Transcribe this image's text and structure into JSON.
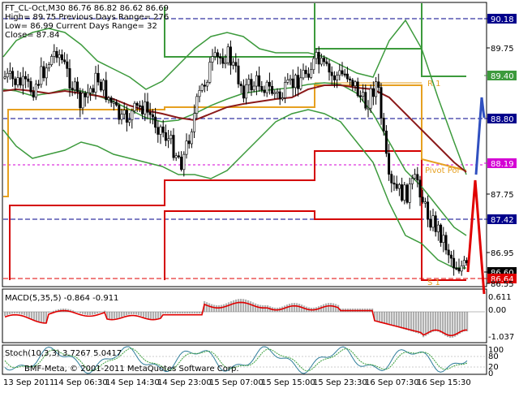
{
  "header": {
    "line1": "FT_CL-Oct,M30  86.76 86.82 86.62 86.69",
    "line2": "High= 89.75   Previous Days Range= 276",
    "line3": "Low= 86.99   Current Days Range= 32",
    "line4": "Close= 87.84"
  },
  "main_chart": {
    "price_labels": [
      {
        "text": "90.18",
        "color": "#00008b"
      },
      {
        "text": "89.75",
        "color": "none"
      },
      {
        "text": "89.40",
        "color": "#3c9a3c"
      },
      {
        "text": "88.80",
        "color": "#00008b"
      },
      {
        "text": "88.19",
        "color": "#d400d4"
      },
      {
        "text": "87.75",
        "color": "none"
      },
      {
        "text": "87.42",
        "color": "#00008b"
      },
      {
        "text": "86.95",
        "color": "none"
      },
      {
        "text": "86.60",
        "color": "#000000"
      },
      {
        "text": "86.64",
        "color": "#e00000"
      },
      {
        "text": "86.55",
        "color": "none"
      }
    ],
    "annotations": {
      "r1": "R 1",
      "pivot": "Pivot Poi",
      "s1": "S 1"
    }
  },
  "macd": {
    "title": "MACD(5,35,5) -0.864 -0.911",
    "scale": [
      "0.611",
      "0.00",
      "-1.037"
    ]
  },
  "stoch": {
    "title": "Stoch(10,3,3) 3.7267 5.0417",
    "scale": [
      "100",
      "80",
      "20",
      "0"
    ],
    "watermark": "BMF-Meta, © 2001-2011 MetaQuotes Software Corp."
  },
  "time_axis": [
    "13 Sep 2011",
    "14 Sep 06:30",
    "14 Sep 14:30",
    "14 Sep 23:00",
    "15 Sep 07:00",
    "15 Sep 15:00",
    "15 Sep 23:30",
    "16 Sep 07:30",
    "16 Sep 15:30"
  ],
  "colors": {
    "background": "#ffffff",
    "candle": "#000000",
    "bollinger": "#3c9a3c",
    "ma": "#8b1a1a",
    "pivot_orange": "#e6a020",
    "range_red": "#d40000",
    "arrow_blue": "#3050c0",
    "arrow_red": "#e00000",
    "macd_hist": "#b0b0b0",
    "macd_signal": "#e00000",
    "stoch_main": "#2e7d9a",
    "stoch_signal": "#3ca03c"
  }
}
